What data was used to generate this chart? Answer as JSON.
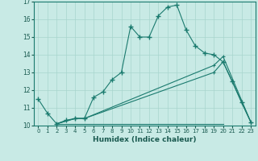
{
  "title": "",
  "xlabel": "Humidex (Indice chaleur)",
  "ylabel": "",
  "bg_color": "#c8eae5",
  "line_color": "#1a7a6e",
  "grid_color": "#a8d5ce",
  "xlim": [
    -0.5,
    23.5
  ],
  "ylim": [
    10,
    17
  ],
  "yticks": [
    10,
    11,
    12,
    13,
    14,
    15,
    16,
    17
  ],
  "xticks": [
    0,
    1,
    2,
    3,
    4,
    5,
    6,
    7,
    8,
    9,
    10,
    11,
    12,
    13,
    14,
    15,
    16,
    17,
    18,
    19,
    20,
    21,
    22,
    23
  ],
  "line1_x": [
    0,
    1,
    2,
    3,
    4,
    5,
    6,
    7,
    8,
    9,
    10,
    11,
    12,
    13,
    14,
    15,
    16,
    17,
    18,
    19,
    20,
    21,
    22,
    23
  ],
  "line1_y": [
    11.5,
    10.7,
    10.1,
    10.3,
    10.4,
    10.4,
    11.6,
    11.9,
    12.6,
    13.0,
    15.6,
    15.0,
    15.0,
    16.2,
    16.7,
    16.8,
    15.4,
    14.5,
    14.1,
    14.0,
    13.6,
    12.5,
    11.3,
    10.2
  ],
  "line2_x": [
    2,
    4,
    5,
    19,
    20,
    23
  ],
  "line2_y": [
    10.1,
    10.4,
    10.4,
    13.0,
    13.6,
    10.2
  ],
  "line3_x": [
    2,
    4,
    5,
    19,
    20,
    23
  ],
  "line3_y": [
    10.1,
    10.4,
    10.4,
    13.4,
    13.9,
    10.2
  ],
  "flat_line_x": [
    2,
    20
  ],
  "flat_line_y": [
    10.1,
    10.1
  ]
}
